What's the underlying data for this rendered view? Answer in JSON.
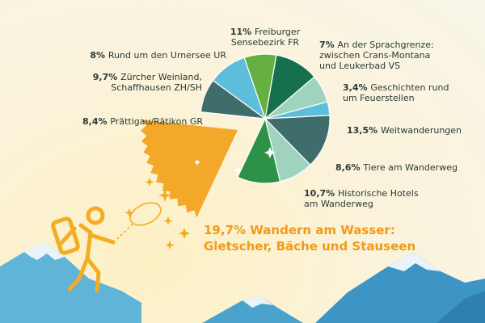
{
  "chart_data": {
    "type": "pie",
    "slices": [
      {
        "value": 11,
        "pct": "11%",
        "lines": [
          "Freiburger",
          "Sensebezirk FR"
        ],
        "color": "#17704d"
      },
      {
        "value": 7,
        "pct": "7%",
        "lines": [
          "An der Sprachgrenze:",
          "zwischen Crans-Montana",
          "und Leukerbad VS"
        ],
        "color": "#9fd3c0"
      },
      {
        "value": 3.4,
        "pct": "3,4%",
        "lines": [
          "Geschichten rund",
          "um Feuerstellen"
        ],
        "color": "#5dbedb"
      },
      {
        "value": 13.5,
        "pct": "13,5%",
        "lines": [
          "Weitwanderungen"
        ],
        "color": "#3f6d6b"
      },
      {
        "value": 8.6,
        "pct": "8,6%",
        "lines": [
          "Tiere am Wanderweg"
        ],
        "color": "#9fd3c0"
      },
      {
        "value": 10.7,
        "pct": "10,7%",
        "lines": [
          "Historische Hotels",
          "am Wanderweg"
        ],
        "color": "#2e9148"
      },
      {
        "value": 19.7,
        "pct": "19,7%",
        "lines": [
          "Wandern am Wasser:",
          "Gletscher, Bäche und Stauseen"
        ],
        "color": "#f4a82a",
        "highlight": true
      },
      {
        "value": 8.4,
        "pct": "8,4%",
        "lines": [
          "Prättigau/Rätikon GR"
        ],
        "color": "#3f6d6b"
      },
      {
        "value": 9.7,
        "pct": "9,7%",
        "lines": [
          "Zürcher Weinland,",
          "Schaffhausen ZH/SH"
        ],
        "color": "#5dbedb"
      },
      {
        "value": 8,
        "pct": "8%",
        "lines": [
          "Rund um den Urnersee UR"
        ],
        "color": "#66b043"
      }
    ]
  }
}
